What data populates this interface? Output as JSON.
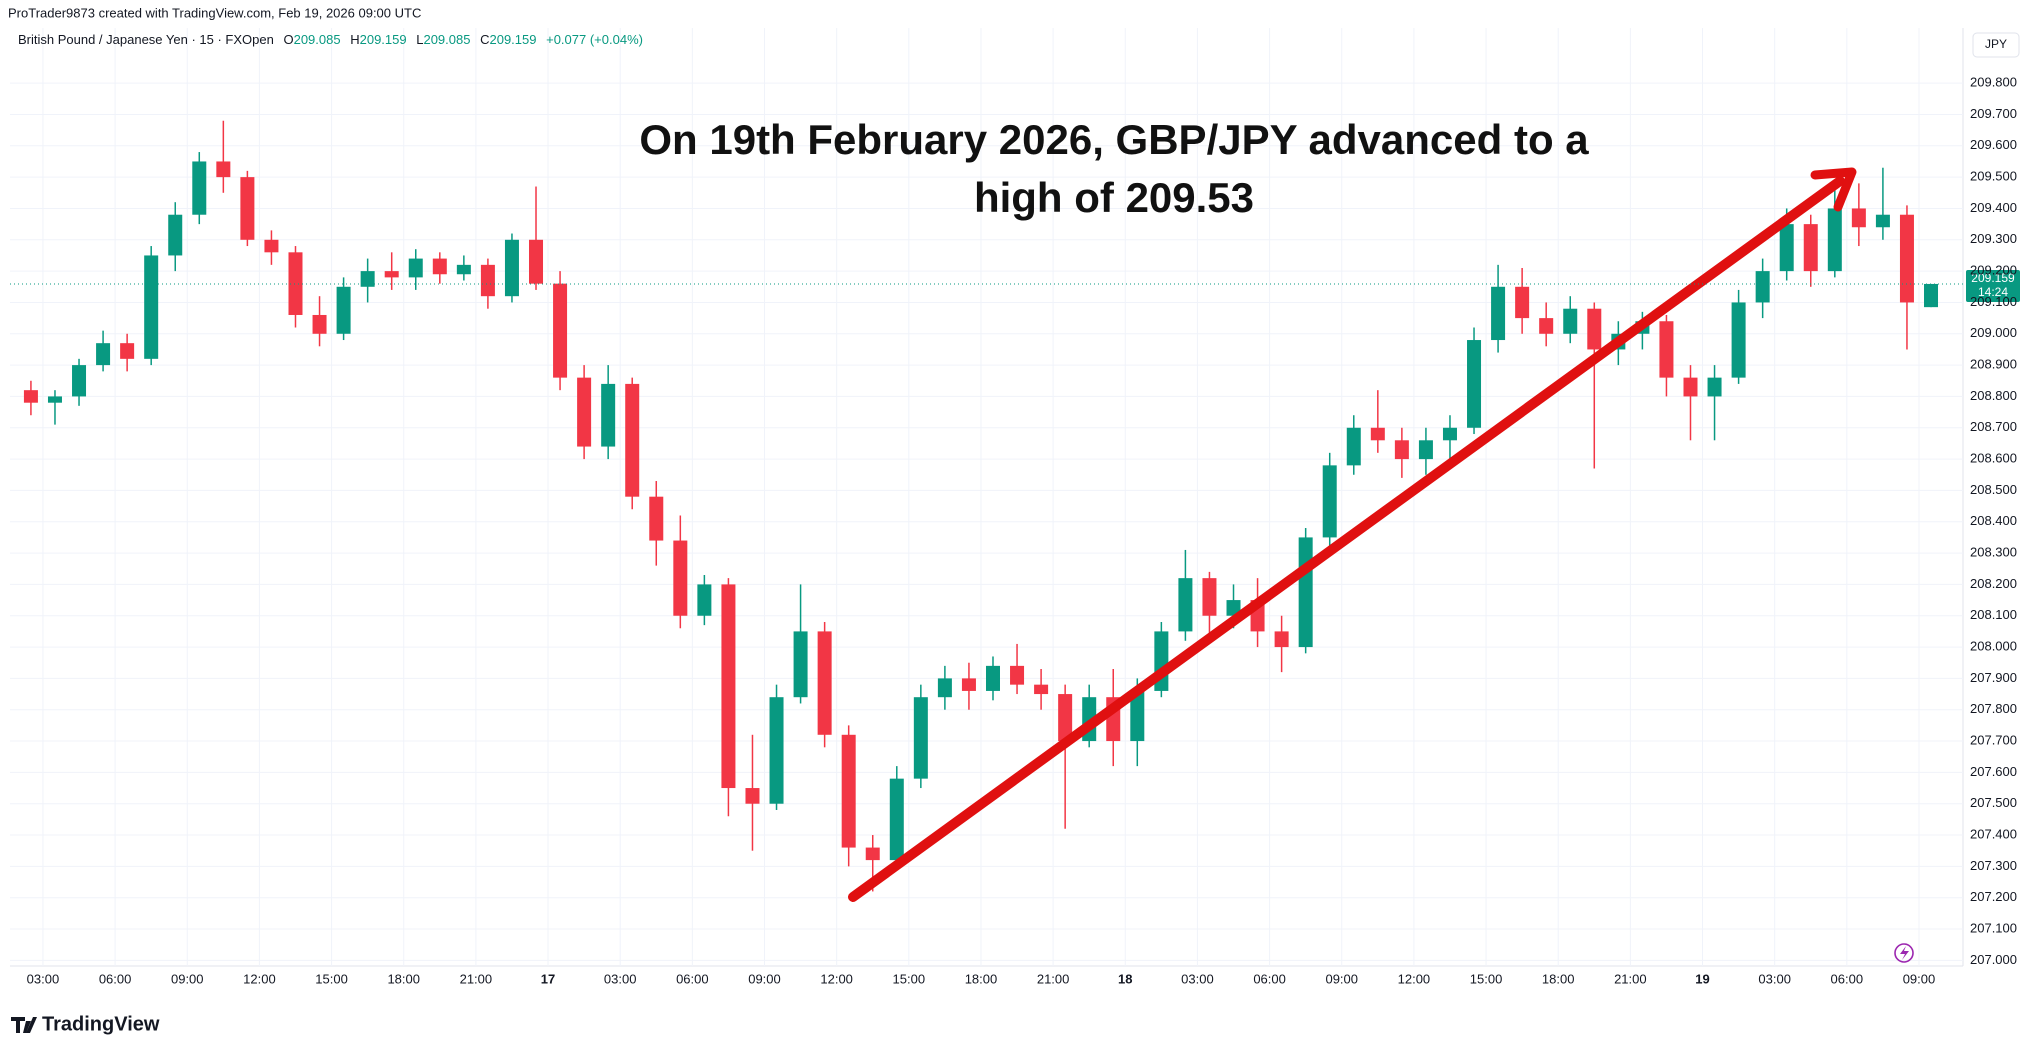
{
  "header": {
    "credit": "ProTrader9873 created with TradingView.com, Feb 19, 2026 09:00 UTC",
    "symbol": "British Pound / Japanese Yen · 15 · FXOpen",
    "ohlc": [
      {
        "label": "O",
        "value": "209.085"
      },
      {
        "label": "H",
        "value": "209.159"
      },
      {
        "label": "L",
        "value": "209.085"
      },
      {
        "label": "C",
        "value": "209.159"
      }
    ],
    "change": "+0.077 (+0.04%)",
    "currency": "JPY",
    "countdown": "14:24"
  },
  "footer": {
    "brand": "TradingView"
  },
  "chart_data": {
    "type": "candlestick",
    "annotation": [
      "On 19th February 2026, GBP/JPY advanced to a",
      "high of 209.53"
    ],
    "up_color": "#089981",
    "down_color": "#f23645",
    "arrow_color": "#e01010",
    "grid": true,
    "ylim": [
      206.982,
      209.976
    ],
    "yticks": [
      {
        "value": 207.0,
        "label": "207.000"
      },
      {
        "value": 207.1,
        "label": "207.100"
      },
      {
        "value": 207.2,
        "label": "207.200"
      },
      {
        "value": 207.3,
        "label": "207.300"
      },
      {
        "value": 207.4,
        "label": "207.400"
      },
      {
        "value": 207.5,
        "label": "207.500"
      },
      {
        "value": 207.6,
        "label": "207.600"
      },
      {
        "value": 207.7,
        "label": "207.700"
      },
      {
        "value": 207.8,
        "label": "207.800"
      },
      {
        "value": 207.9,
        "label": "207.900"
      },
      {
        "value": 208.0,
        "label": "208.000"
      },
      {
        "value": 208.1,
        "label": "208.100"
      },
      {
        "value": 208.2,
        "label": "208.200"
      },
      {
        "value": 208.3,
        "label": "208.300"
      },
      {
        "value": 208.4,
        "label": "208.400"
      },
      {
        "value": 208.5,
        "label": "208.500"
      },
      {
        "value": 208.6,
        "label": "208.600"
      },
      {
        "value": 208.7,
        "label": "208.700"
      },
      {
        "value": 208.8,
        "label": "208.800"
      },
      {
        "value": 208.9,
        "label": "208.900"
      },
      {
        "value": 209.0,
        "label": "209.000"
      },
      {
        "value": 209.1,
        "label": "209.100"
      },
      {
        "value": 209.2,
        "label": "209.200"
      },
      {
        "value": 209.3,
        "label": "209.300"
      },
      {
        "value": 209.4,
        "label": "209.400"
      },
      {
        "value": 209.5,
        "label": "209.500"
      },
      {
        "value": 209.6,
        "label": "209.600"
      },
      {
        "value": 209.7,
        "label": "209.700"
      },
      {
        "value": 209.8,
        "label": "209.800"
      }
    ],
    "xlim": [
      -0.37,
      80.83
    ],
    "xticks": [
      {
        "value": 1,
        "label": "03:00"
      },
      {
        "value": 4,
        "label": "06:00"
      },
      {
        "value": 7,
        "label": "09:00"
      },
      {
        "value": 10,
        "label": "12:00"
      },
      {
        "value": 13,
        "label": "15:00"
      },
      {
        "value": 16,
        "label": "18:00"
      },
      {
        "value": 19,
        "label": "21:00"
      },
      {
        "value": 22,
        "label": "17"
      },
      {
        "value": 25,
        "label": "03:00"
      },
      {
        "value": 28,
        "label": "06:00"
      },
      {
        "value": 31,
        "label": "09:00"
      },
      {
        "value": 34,
        "label": "12:00"
      },
      {
        "value": 37,
        "label": "15:00"
      },
      {
        "value": 40,
        "label": "18:00"
      },
      {
        "value": 43,
        "label": "21:00"
      },
      {
        "value": 46,
        "label": "18"
      },
      {
        "value": 49,
        "label": "03:00"
      },
      {
        "value": 52,
        "label": "06:00"
      },
      {
        "value": 55,
        "label": "09:00"
      },
      {
        "value": 58,
        "label": "12:00"
      },
      {
        "value": 61,
        "label": "15:00"
      },
      {
        "value": 64,
        "label": "18:00"
      },
      {
        "value": 67,
        "label": "21:00"
      },
      {
        "value": 70,
        "label": "19"
      },
      {
        "value": 73,
        "label": "03:00"
      },
      {
        "value": 76,
        "label": "06:00"
      },
      {
        "value": 79,
        "label": "09:00"
      }
    ],
    "candles": [
      [
        208.82,
        208.85,
        208.74,
        208.78
      ],
      [
        208.78,
        208.82,
        208.71,
        208.8
      ],
      [
        208.8,
        208.92,
        208.77,
        208.9
      ],
      [
        208.9,
        209.01,
        208.88,
        208.97
      ],
      [
        208.97,
        209.0,
        208.88,
        208.92
      ],
      [
        208.92,
        209.28,
        208.9,
        209.25
      ],
      [
        209.25,
        209.42,
        209.2,
        209.38
      ],
      [
        209.38,
        209.58,
        209.35,
        209.55
      ],
      [
        209.55,
        209.68,
        209.45,
        209.5
      ],
      [
        209.5,
        209.52,
        209.28,
        209.3
      ],
      [
        209.3,
        209.33,
        209.22,
        209.26
      ],
      [
        209.26,
        209.28,
        209.02,
        209.06
      ],
      [
        209.06,
        209.12,
        208.96,
        209.0
      ],
      [
        209.0,
        209.18,
        208.98,
        209.15
      ],
      [
        209.15,
        209.24,
        209.1,
        209.2
      ],
      [
        209.2,
        209.26,
        209.14,
        209.18
      ],
      [
        209.18,
        209.27,
        209.14,
        209.24
      ],
      [
        209.24,
        209.26,
        209.16,
        209.19
      ],
      [
        209.19,
        209.25,
        209.17,
        209.22
      ],
      [
        209.22,
        209.24,
        209.08,
        209.12
      ],
      [
        209.12,
        209.32,
        209.1,
        209.3
      ],
      [
        209.3,
        209.47,
        209.14,
        209.16
      ],
      [
        209.16,
        209.2,
        208.82,
        208.86
      ],
      [
        208.86,
        208.9,
        208.6,
        208.64
      ],
      [
        208.64,
        208.9,
        208.6,
        208.84
      ],
      [
        208.84,
        208.86,
        208.44,
        208.48
      ],
      [
        208.48,
        208.53,
        208.26,
        208.34
      ],
      [
        208.34,
        208.42,
        208.06,
        208.1
      ],
      [
        208.1,
        208.23,
        208.07,
        208.2
      ],
      [
        208.2,
        208.22,
        207.46,
        207.55
      ],
      [
        207.55,
        207.72,
        207.35,
        207.5
      ],
      [
        207.5,
        207.88,
        207.48,
        207.84
      ],
      [
        207.84,
        208.2,
        207.82,
        208.05
      ],
      [
        208.05,
        208.08,
        207.68,
        207.72
      ],
      [
        207.72,
        207.75,
        207.3,
        207.36
      ],
      [
        207.36,
        207.4,
        207.22,
        207.32
      ],
      [
        207.32,
        207.62,
        207.3,
        207.58
      ],
      [
        207.58,
        207.88,
        207.55,
        207.84
      ],
      [
        207.84,
        207.94,
        207.8,
        207.9
      ],
      [
        207.9,
        207.95,
        207.8,
        207.86
      ],
      [
        207.86,
        207.97,
        207.83,
        207.94
      ],
      [
        207.94,
        208.01,
        207.85,
        207.88
      ],
      [
        207.88,
        207.93,
        207.8,
        207.85
      ],
      [
        207.85,
        207.88,
        207.42,
        207.7
      ],
      [
        207.7,
        207.88,
        207.68,
        207.84
      ],
      [
        207.84,
        207.93,
        207.62,
        207.7
      ],
      [
        207.7,
        207.9,
        207.62,
        207.86
      ],
      [
        207.86,
        208.08,
        207.84,
        208.05
      ],
      [
        208.05,
        208.31,
        208.02,
        208.22
      ],
      [
        208.22,
        208.24,
        208.04,
        208.1
      ],
      [
        208.1,
        208.2,
        208.06,
        208.15
      ],
      [
        208.15,
        208.22,
        208.0,
        208.05
      ],
      [
        208.05,
        208.1,
        207.92,
        208.0
      ],
      [
        208.0,
        208.38,
        207.98,
        208.35
      ],
      [
        208.35,
        208.62,
        208.32,
        208.58
      ],
      [
        208.58,
        208.74,
        208.55,
        208.7
      ],
      [
        208.7,
        208.82,
        208.62,
        208.66
      ],
      [
        208.66,
        208.7,
        208.54,
        208.6
      ],
      [
        208.6,
        208.7,
        208.55,
        208.66
      ],
      [
        208.66,
        208.74,
        208.58,
        208.7
      ],
      [
        208.7,
        209.02,
        208.68,
        208.98
      ],
      [
        208.98,
        209.22,
        208.94,
        209.15
      ],
      [
        209.15,
        209.21,
        209.0,
        209.05
      ],
      [
        209.05,
        209.1,
        208.96,
        209.0
      ],
      [
        209.0,
        209.12,
        208.97,
        209.08
      ],
      [
        209.08,
        209.1,
        208.57,
        208.95
      ],
      [
        208.95,
        209.04,
        208.9,
        209.0
      ],
      [
        209.0,
        209.07,
        208.95,
        209.04
      ],
      [
        209.04,
        209.06,
        208.8,
        208.86
      ],
      [
        208.86,
        208.9,
        208.66,
        208.8
      ],
      [
        208.8,
        208.9,
        208.66,
        208.86
      ],
      [
        208.86,
        209.14,
        208.84,
        209.1
      ],
      [
        209.1,
        209.24,
        209.05,
        209.2
      ],
      [
        209.2,
        209.4,
        209.17,
        209.35
      ],
      [
        209.35,
        209.38,
        209.15,
        209.2
      ],
      [
        209.2,
        209.46,
        209.18,
        209.4
      ],
      [
        209.4,
        209.48,
        209.28,
        209.34
      ],
      [
        209.34,
        209.53,
        209.3,
        209.38
      ],
      [
        209.38,
        209.41,
        208.95,
        209.1
      ],
      [
        209.085,
        209.159,
        209.085,
        209.159
      ]
    ]
  }
}
